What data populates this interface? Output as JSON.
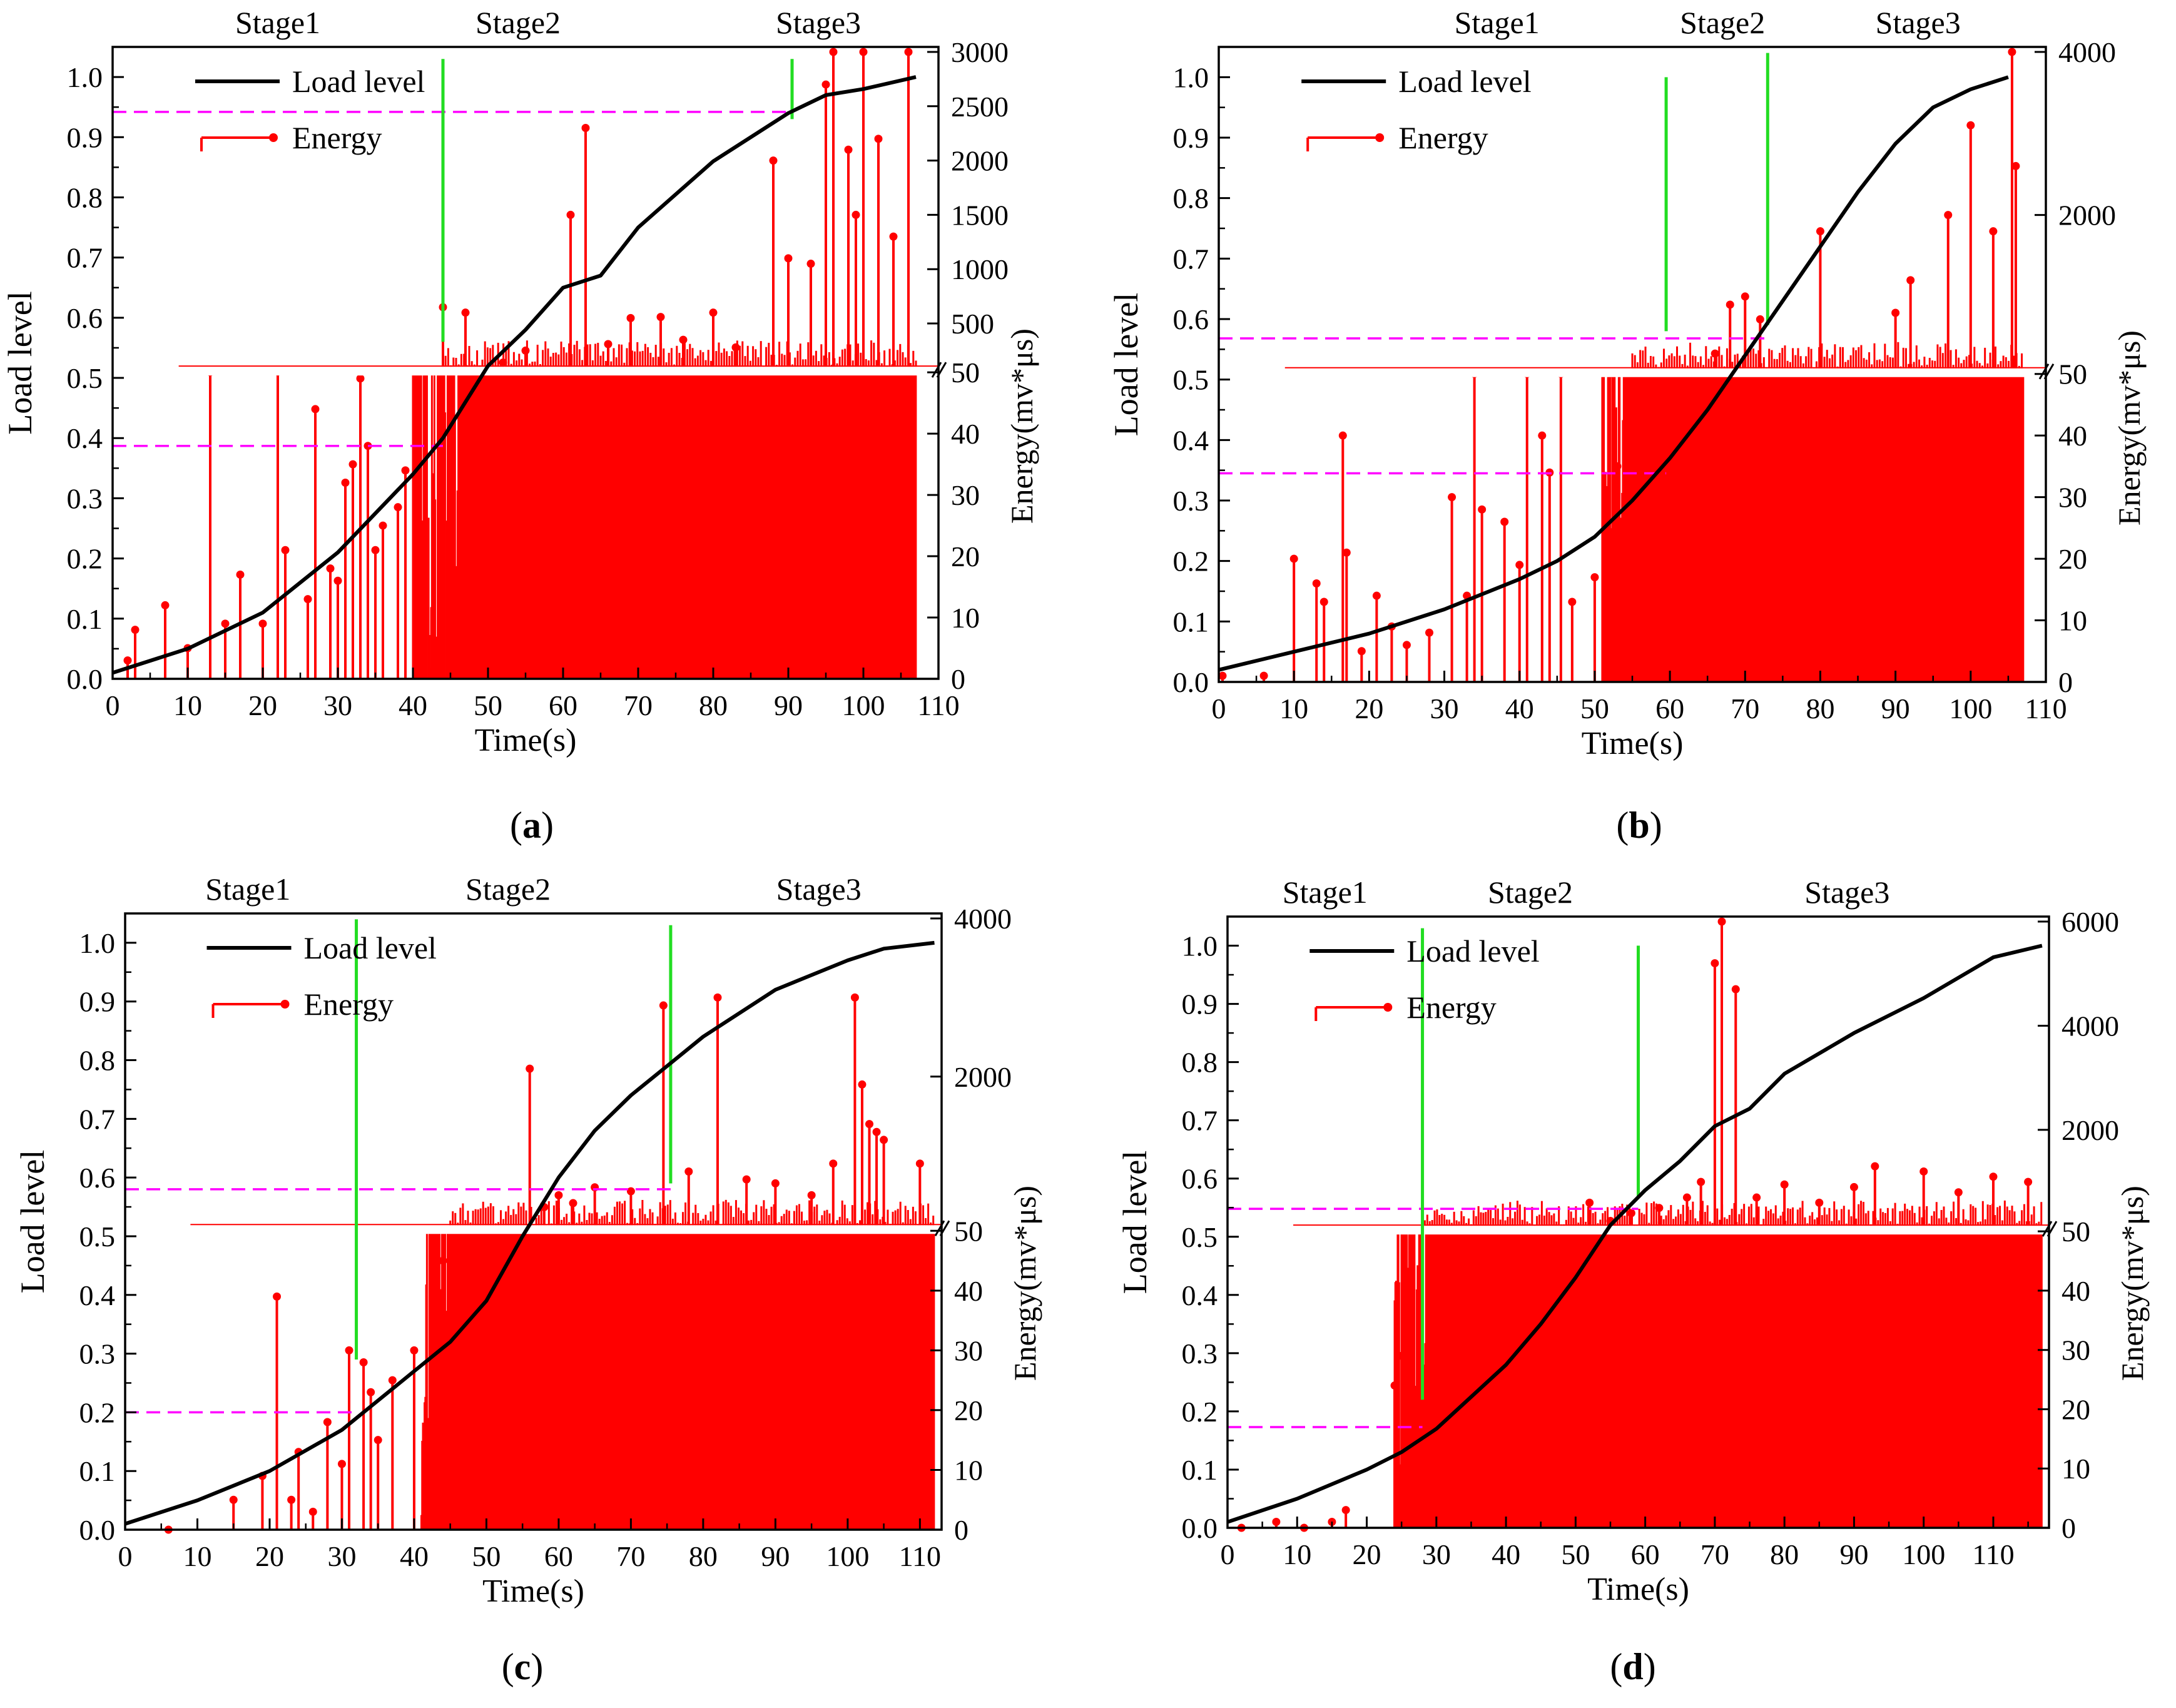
{
  "figure": {
    "captions": [
      {
        "open": "(",
        "letter": "a",
        "close": ")"
      },
      {
        "open": "(",
        "letter": "b",
        "close": ")"
      },
      {
        "open": "(",
        "letter": "c",
        "close": ")"
      },
      {
        "open": "(",
        "letter": "d",
        "close": ")"
      }
    ]
  },
  "colors": {
    "load": "#000000",
    "energy": "#ff0000",
    "stage_divider": "#22dd22",
    "threshold": "#ff00ff",
    "break_band": "#ffffff"
  },
  "chart_data": [
    {
      "type": "line",
      "panel": "a",
      "xlabel": "Time(s)",
      "ylabel_left": "Load level",
      "ylabel_right": "Energy(mv*μs)",
      "stages": [
        "Stage1",
        "Stage2",
        "Stage3"
      ],
      "stage_label_x": [
        22,
        54,
        94
      ],
      "legend": {
        "load": "Load level",
        "energy": "Energy",
        "position": "top-left"
      },
      "xlim": [
        0,
        110
      ],
      "x_ticks": [
        0,
        10,
        20,
        30,
        40,
        50,
        60,
        70,
        80,
        90,
        100,
        110
      ],
      "ylim_left": [
        0,
        1.05
      ],
      "y_ticks_left": [
        0.0,
        0.1,
        0.2,
        0.3,
        0.4,
        0.5,
        0.6,
        0.7,
        0.8,
        0.9,
        1.0
      ],
      "energy_axis_lower": {
        "range": [
          0,
          50
        ],
        "ticks": [
          0,
          10,
          20,
          30,
          40,
          50
        ]
      },
      "energy_axis_upper": {
        "range": [
          0,
          3000
        ],
        "ticks": [
          500,
          1000,
          1500,
          2000,
          2500,
          3000
        ]
      },
      "stage_dividers": [
        {
          "x": 44,
          "y_from": 0.56,
          "y_to": 1.03
        },
        {
          "x": 90.5,
          "y_from": 0.93,
          "y_to": 1.03
        }
      ],
      "thresholds": [
        {
          "y": 0.387,
          "x_from": 0,
          "x_to": 44
        },
        {
          "y": 0.942,
          "x_from": 0,
          "x_to": 90.5
        }
      ],
      "load_level": {
        "x": [
          0,
          10,
          20,
          30,
          40,
          44,
          50,
          55,
          60,
          65,
          70,
          80,
          90,
          95,
          100,
          107
        ],
        "y": [
          0.01,
          0.05,
          0.11,
          0.21,
          0.34,
          0.4,
          0.52,
          0.58,
          0.65,
          0.67,
          0.75,
          0.86,
          0.94,
          0.97,
          0.98,
          1.0
        ]
      },
      "energy_peaks": {
        "x": [
          2,
          3,
          7,
          10,
          13,
          15,
          17,
          20,
          22,
          23,
          26,
          27,
          29,
          30,
          31,
          32,
          33,
          34,
          35,
          36,
          38,
          39,
          44,
          47,
          52,
          55,
          61,
          63,
          66,
          69,
          73,
          76,
          80,
          83,
          88,
          90,
          93,
          95,
          96,
          98,
          99,
          100,
          102,
          104,
          106
        ],
        "y": [
          3,
          8,
          12,
          5,
          53,
          9,
          17,
          9,
          55,
          21,
          13,
          44,
          18,
          16,
          32,
          35,
          49,
          38,
          21,
          25,
          28,
          34,
          650,
          600,
          140,
          250,
          1500,
          2300,
          310,
          550,
          560,
          350,
          600,
          280,
          2000,
          1100,
          1050,
          2700,
          3000,
          2100,
          1500,
          3000,
          2200,
          1300,
          3000
        ]
      },
      "energy_dense_from": 40,
      "energy_dense_to": 107
    },
    {
      "type": "line",
      "panel": "b",
      "xlabel": "Time(s)",
      "ylabel_left": "Load level",
      "ylabel_right": "Energy(mv*μs)",
      "stages": [
        "Stage1",
        "Stage2",
        "Stage3"
      ],
      "stage_label_x": [
        37,
        67,
        93
      ],
      "legend": {
        "load": "Load level",
        "energy": "Energy",
        "position": "top-left"
      },
      "xlim": [
        0,
        110
      ],
      "x_ticks": [
        0,
        10,
        20,
        30,
        40,
        50,
        60,
        70,
        80,
        90,
        100,
        110
      ],
      "ylim_left": [
        0,
        1.05
      ],
      "y_ticks_left": [
        0.0,
        0.1,
        0.2,
        0.3,
        0.4,
        0.5,
        0.6,
        0.7,
        0.8,
        0.9,
        1.0
      ],
      "energy_axis_lower": {
        "range": [
          0,
          50
        ],
        "ticks": [
          0,
          10,
          20,
          30,
          40,
          50
        ]
      },
      "energy_axis_upper": {
        "range": [
          0,
          4000
        ],
        "ticks": [
          2000,
          4000
        ]
      },
      "stage_dividers": [
        {
          "x": 59.5,
          "y_from": 0.58,
          "y_to": 1.0
        },
        {
          "x": 73,
          "y_from": 0.59,
          "y_to": 1.04
        }
      ],
      "thresholds": [
        {
          "y": 0.345,
          "x_from": 0,
          "x_to": 59.5
        },
        {
          "y": 0.568,
          "x_from": 0,
          "x_to": 73
        }
      ],
      "load_level": {
        "x": [
          0,
          10,
          20,
          30,
          40,
          45,
          50,
          55,
          60,
          65,
          70,
          75,
          80,
          85,
          90,
          95,
          100,
          105
        ],
        "y": [
          0.02,
          0.05,
          0.08,
          0.12,
          0.17,
          0.2,
          0.24,
          0.3,
          0.37,
          0.45,
          0.54,
          0.63,
          0.72,
          0.81,
          0.89,
          0.95,
          0.98,
          1.0
        ]
      },
      "energy_peaks": {
        "x": [
          0.5,
          6,
          10,
          13,
          14,
          16.5,
          17,
          19,
          21,
          23,
          25,
          28,
          31,
          33,
          34,
          35,
          38,
          40,
          41,
          43,
          44,
          45.5,
          47,
          50,
          52,
          53,
          55,
          57,
          59,
          60,
          62,
          64,
          66,
          68,
          70,
          72,
          80,
          90,
          92,
          97,
          100,
          103,
          105.5,
          106
        ],
        "y": [
          1,
          1,
          20,
          16,
          13,
          40,
          21,
          5,
          14,
          9,
          6,
          8,
          30,
          14,
          52,
          28,
          26,
          19,
          52,
          40,
          34,
          52,
          13,
          17,
          52,
          35,
          52,
          26,
          43,
          52,
          46,
          52,
          300,
          900,
          1000,
          720,
          1800,
          800,
          1200,
          2000,
          3100,
          1800,
          4000,
          2600
        ]
      },
      "energy_dense_from": 51,
      "energy_dense_to": 107
    },
    {
      "type": "line",
      "panel": "c",
      "xlabel": "Time(s)",
      "ylabel_left": "Load level",
      "ylabel_right": "Energy(mv*μs)",
      "stages": [
        "Stage1",
        "Stage2",
        "Stage3"
      ],
      "stage_label_x": [
        17,
        53,
        96
      ],
      "legend": {
        "load": "Load level",
        "energy": "Energy",
        "position": "top-left"
      },
      "xlim": [
        0,
        113
      ],
      "x_ticks": [
        0,
        10,
        20,
        30,
        40,
        50,
        60,
        70,
        80,
        90,
        100,
        110
      ],
      "ylim_left": [
        0,
        1.05
      ],
      "y_ticks_left": [
        0.0,
        0.1,
        0.2,
        0.3,
        0.4,
        0.5,
        0.6,
        0.7,
        0.8,
        0.9,
        1.0
      ],
      "energy_axis_lower": {
        "range": [
          0,
          50
        ],
        "ticks": [
          0,
          10,
          20,
          30,
          40,
          50
        ]
      },
      "energy_axis_upper": {
        "range": [
          0,
          4000
        ],
        "ticks": [
          2000,
          4000
        ]
      },
      "stage_dividers": [
        {
          "x": 32,
          "y_from": 0.29,
          "y_to": 1.04
        },
        {
          "x": 75.5,
          "y_from": 0.59,
          "y_to": 1.03
        }
      ],
      "thresholds": [
        {
          "y": 0.2,
          "x_from": 0,
          "x_to": 32
        },
        {
          "y": 0.58,
          "x_from": 0,
          "x_to": 75.5
        }
      ],
      "load_level": {
        "x": [
          0,
          10,
          20,
          30,
          35,
          40,
          45,
          50,
          55,
          60,
          65,
          70,
          75,
          80,
          90,
          100,
          105,
          112
        ],
        "y": [
          0.01,
          0.05,
          0.1,
          0.17,
          0.22,
          0.27,
          0.32,
          0.39,
          0.5,
          0.6,
          0.68,
          0.74,
          0.79,
          0.84,
          0.92,
          0.97,
          0.99,
          1.0
        ]
      },
      "energy_peaks": {
        "x": [
          6,
          15,
          19,
          21,
          23,
          24,
          26,
          28,
          30,
          31,
          33,
          34,
          35,
          37,
          40,
          42,
          44,
          46,
          48,
          50,
          52,
          54,
          56,
          58,
          60,
          62,
          65,
          70,
          74.5,
          78,
          82,
          86,
          90,
          95,
          98,
          101,
          102,
          103,
          104,
          105,
          110
        ],
        "y": [
          0,
          5,
          9,
          39,
          5,
          13,
          3,
          18,
          11,
          30,
          28,
          23,
          15,
          25,
          30,
          18,
          45,
          52,
          29,
          38,
          52,
          46,
          2100,
          350,
          500,
          400,
          600,
          550,
          2900,
          800,
          3000,
          700,
          650,
          500,
          900,
          3000,
          1900,
          1400,
          1300,
          1200,
          900
        ]
      },
      "energy_dense_from": 41,
      "energy_dense_to": 112
    },
    {
      "type": "line",
      "panel": "d",
      "xlabel": "Time(s)",
      "ylabel_left": "Load level",
      "ylabel_right": "Energy(mv*μs)",
      "stages": [
        "Stage1",
        "Stage2",
        "Stage3"
      ],
      "stage_label_x": [
        14,
        43.5,
        89
      ],
      "legend": {
        "load": "Load level",
        "energy": "Energy",
        "position": "top-left"
      },
      "xlim": [
        0,
        118
      ],
      "x_ticks": [
        0,
        10,
        20,
        30,
        40,
        50,
        60,
        70,
        80,
        90,
        100,
        110
      ],
      "ylim_left": [
        0,
        1.05
      ],
      "y_ticks_left": [
        0.0,
        0.1,
        0.2,
        0.3,
        0.4,
        0.5,
        0.6,
        0.7,
        0.8,
        0.9,
        1.0
      ],
      "energy_axis_lower": {
        "range": [
          0,
          50
        ],
        "ticks": [
          0,
          10,
          20,
          30,
          40,
          50
        ]
      },
      "energy_axis_upper": {
        "range": [
          0,
          6000
        ],
        "ticks": [
          2000,
          4000,
          6000
        ]
      },
      "stage_dividers": [
        {
          "x": 28,
          "y_from": 0.22,
          "y_to": 1.03
        },
        {
          "x": 59,
          "y_from": 0.57,
          "y_to": 1.0
        }
      ],
      "thresholds": [
        {
          "y": 0.173,
          "x_from": 0,
          "x_to": 28
        },
        {
          "y": 0.548,
          "x_from": 0,
          "x_to": 59
        }
      ],
      "load_level": {
        "x": [
          0,
          10,
          20,
          25,
          30,
          40,
          45,
          50,
          55,
          60,
          65,
          70,
          75,
          80,
          90,
          100,
          110,
          117
        ],
        "y": [
          0.01,
          0.05,
          0.1,
          0.13,
          0.17,
          0.28,
          0.35,
          0.43,
          0.52,
          0.58,
          0.63,
          0.69,
          0.72,
          0.78,
          0.85,
          0.91,
          0.98,
          1.0
        ]
      },
      "energy_peaks": {
        "x": [
          2,
          7,
          11,
          15,
          17,
          24,
          25,
          26,
          27,
          28,
          29,
          31,
          33,
          35,
          37,
          39,
          40,
          42,
          44,
          46,
          48,
          50,
          52,
          55,
          58,
          62,
          66,
          68,
          70,
          71,
          73,
          76,
          80,
          85,
          90,
          93,
          100,
          105,
          110,
          115
        ],
        "y": [
          0,
          1,
          0,
          1,
          3,
          24,
          29,
          32,
          17,
          9,
          14,
          37,
          44,
          29,
          49,
          33,
          45,
          38,
          30,
          46,
          21,
          30,
          600,
          250,
          400,
          500,
          700,
          1000,
          5200,
          6000,
          4700,
          700,
          950,
          600,
          900,
          1300,
          1200,
          800,
          1100,
          1000
        ]
      },
      "energy_dense_from": 24,
      "energy_dense_to": 117
    }
  ]
}
